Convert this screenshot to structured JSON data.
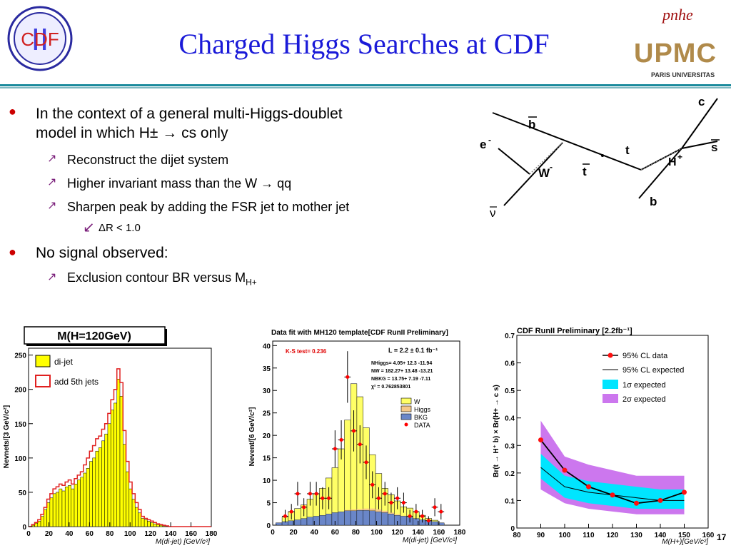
{
  "header": {
    "title": "Charged Higgs Searches at CDF",
    "logo_left_text": "CDF",
    "logo_left_numeral": "II",
    "logo_right_script": "pnhe",
    "logo_right_main": "UPMC",
    "logo_right_sub": "PARIS UNIVERSITAS"
  },
  "bullets": {
    "b1_line1": "In the context of a general multi-Higgs-doublet",
    "b1_line2": "model in which H± → cs only",
    "sub1": "Reconstruct the dijet system",
    "sub2": "Higher invariant mass than the W → qq",
    "sub3": "Sharpen peak by adding the FSR jet to mother jet",
    "subsub1": "ΔR < 1.0",
    "b2": "No signal observed:",
    "sub4": "Exclusion contour BR versus M",
    "sub4_subscript": "H+"
  },
  "diagram": {
    "labels": {
      "c": "c",
      "bbar": "b",
      "eminus": "e",
      "nubar": "ν",
      "W": "W",
      "tbar": "t",
      "t": "t",
      "H": "H",
      "sbar": "s",
      "b": "b"
    },
    "superscripts": {
      "eminus": "-",
      "W": "-",
      "H": "+"
    }
  },
  "page_number": "17",
  "chart_data": [
    {
      "type": "histogram",
      "title": "M(H=120GeV)",
      "xlabel": "M(di-jet) [GeV/c²]",
      "ylabel": "Nevnets/[3 GeV/c²]",
      "xlim": [
        0,
        180
      ],
      "ylim": [
        0,
        260
      ],
      "xticks": [
        "0",
        "20",
        "40",
        "60",
        "80",
        "100",
        "120",
        "140",
        "160",
        "180"
      ],
      "yticks": [
        "0",
        "50",
        "100",
        "150",
        "200",
        "250"
      ],
      "legend": [
        "di-jet",
        "add 5th jets"
      ],
      "legend_position": "top-left",
      "bin_width": 3,
      "series": [
        {
          "name": "di-jet",
          "color": "#ffff00",
          "values": [
            0,
            2,
            5,
            8,
            15,
            25,
            35,
            42,
            48,
            50,
            55,
            52,
            58,
            60,
            55,
            62,
            68,
            72,
            78,
            85,
            95,
            100,
            110,
            115,
            125,
            135,
            150,
            170,
            180,
            215,
            190,
            120,
            80,
            55,
            40,
            28,
            20,
            12,
            10,
            8,
            6,
            4,
            3,
            2,
            1,
            0,
            0,
            0,
            0,
            0,
            0,
            0,
            0,
            0,
            0,
            0,
            0,
            0,
            0,
            0
          ]
        },
        {
          "name": "add 5th jets",
          "color": "#e02020",
          "values": [
            0,
            3,
            6,
            10,
            18,
            28,
            40,
            48,
            55,
            58,
            62,
            60,
            65,
            68,
            62,
            70,
            75,
            80,
            90,
            100,
            110,
            118,
            128,
            132,
            142,
            150,
            165,
            185,
            200,
            230,
            210,
            140,
            95,
            65,
            48,
            35,
            25,
            15,
            12,
            10,
            8,
            6,
            4,
            3,
            2,
            1,
            0,
            0,
            0,
            0,
            0,
            0,
            0,
            0,
            0,
            0,
            0,
            0,
            0,
            0
          ]
        }
      ]
    },
    {
      "type": "histogram",
      "title": "Data fit with MH120 template[CDF RunII Preliminary]",
      "xlabel": "M(di-jet) [GeV/c²]",
      "ylabel": "Nevent/[6 GeV/c²]",
      "xlim": [
        0,
        180
      ],
      "ylim": [
        0,
        41
      ],
      "xticks": [
        "0",
        "20",
        "40",
        "60",
        "80",
        "100",
        "120",
        "140",
        "160",
        "180"
      ],
      "yticks": [
        "0",
        "5",
        "10",
        "15",
        "20",
        "25",
        "30",
        "35",
        "40"
      ],
      "annotations": {
        "ks": "K-S test=   0.236",
        "lumi": "L = 2.2 ± 0.1 fb⁻¹",
        "row1": "NHiggs=    4.05+    12.3   -11.94",
        "row2": "NW     =   182.27+   13.48   -13.21",
        "row3": "NBKG  =   13.75+    7.19    -7.11",
        "row4": "χ²     =   0.762853801"
      },
      "legend": [
        "W",
        "Higgs",
        "BKG",
        "DATA"
      ],
      "legend_position": "middle-right",
      "x": [
        6,
        12,
        18,
        24,
        30,
        36,
        42,
        48,
        54,
        60,
        66,
        72,
        78,
        84,
        90,
        96,
        102,
        108,
        114,
        120,
        126,
        132,
        138,
        144,
        150,
        156,
        162
      ],
      "series": [
        {
          "name": "W",
          "color": "#ffff66",
          "values": [
            0,
            1,
            2,
            2.5,
            3,
            4,
            5,
            6,
            8,
            10,
            14,
            20,
            28,
            25,
            18,
            12,
            8,
            5,
            4,
            3,
            2,
            2,
            1.5,
            1,
            0.5,
            0.3,
            0
          ]
        },
        {
          "name": "Higgs",
          "color": "#f5c88a",
          "values": [
            0,
            0,
            0,
            0,
            0,
            0,
            0,
            0,
            0,
            0,
            0,
            0.2,
            0.3,
            0.3,
            0.4,
            0.5,
            0.5,
            0.4,
            0.3,
            0.2,
            0.1,
            0,
            0,
            0,
            0,
            0,
            0
          ]
        },
        {
          "name": "BKG",
          "color": "#6a86c8",
          "values": [
            0.5,
            0.8,
            1,
            1.2,
            1.5,
            1.8,
            2,
            2.2,
            2.5,
            2.8,
            3,
            3.2,
            3.2,
            3.3,
            3.3,
            3.2,
            3,
            2.8,
            2.5,
            2.2,
            2,
            1.8,
            1.5,
            1.2,
            1,
            0.8,
            0.5
          ]
        },
        {
          "name": "DATA",
          "color": "#ff0000",
          "values": [
            0,
            2,
            3,
            7,
            4,
            7,
            7,
            6,
            6,
            17,
            19,
            33,
            21,
            18,
            14,
            9,
            6,
            7,
            5,
            6,
            5,
            2,
            3,
            2,
            1,
            4,
            3
          ]
        }
      ]
    },
    {
      "type": "line",
      "title": "CDF RunII Preliminary [2.2fb⁻¹]",
      "xlabel": "M(H+)[GeV/c²]",
      "ylabel": "Br(t → H⁺ b) × Br(H+ → c s)",
      "xlim": [
        80,
        160
      ],
      "ylim": [
        0,
        0.7
      ],
      "xticks": [
        "80",
        "90",
        "100",
        "110",
        "120",
        "130",
        "140",
        "150",
        "160"
      ],
      "yticks": [
        "0",
        "0.1",
        "0.2",
        "0.3",
        "0.4",
        "0.5",
        "0.6",
        "0.7"
      ],
      "legend": [
        "95% CL data",
        "95% CL expected",
        "1σ expected",
        "2σ expected"
      ],
      "legend_position": "top-right",
      "x": [
        90,
        100,
        110,
        120,
        130,
        140,
        150
      ],
      "series": [
        {
          "name": "95% CL data",
          "color": "#000000",
          "values": [
            0.32,
            0.21,
            0.15,
            0.12,
            0.09,
            0.1,
            0.13
          ]
        },
        {
          "name": "95% CL expected",
          "color": "#000000",
          "values": [
            0.22,
            0.15,
            0.13,
            0.12,
            0.11,
            0.1,
            0.1
          ]
        },
        {
          "name": "1σ expected",
          "color": "#00e5ff",
          "lower": [
            0.18,
            0.11,
            0.09,
            0.08,
            0.07,
            0.07,
            0.07
          ],
          "upper": [
            0.27,
            0.19,
            0.17,
            0.16,
            0.15,
            0.14,
            0.14
          ]
        },
        {
          "name": "2σ expected",
          "color": "#cc77ee",
          "lower": [
            0.14,
            0.09,
            0.07,
            0.06,
            0.05,
            0.05,
            0.05
          ],
          "upper": [
            0.39,
            0.26,
            0.23,
            0.21,
            0.19,
            0.19,
            0.19
          ]
        }
      ]
    }
  ]
}
